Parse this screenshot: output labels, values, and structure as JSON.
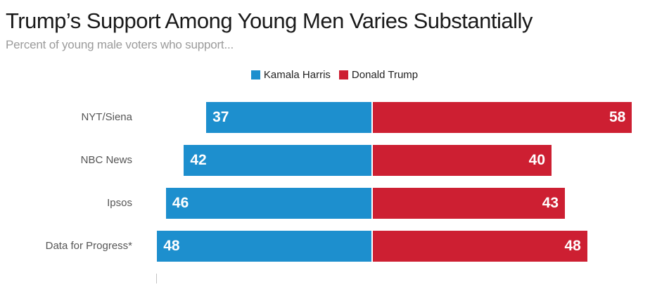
{
  "title": "Trump’s Support Among Young Men Varies Substantially",
  "subtitle": "Percent of young male voters who support...",
  "legend": {
    "items": [
      {
        "label": "Kamala Harris"
      },
      {
        "label": "Donald Trump"
      }
    ]
  },
  "chart_data": {
    "type": "bar",
    "variant": "diverging-horizontal",
    "title": "Trump’s Support Among Young Men Varies Substantially",
    "subtitle": "Percent of young male voters who support...",
    "categories": [
      "NYT/Siena",
      "NBC News",
      "Ipsos",
      "Data for Progress*"
    ],
    "series": [
      {
        "name": "Kamala Harris",
        "color": "#1d8fce",
        "values": [
          37,
          42,
          46,
          48
        ]
      },
      {
        "name": "Donald Trump",
        "color": "#cd1f32",
        "values": [
          58,
          40,
          43,
          48
        ]
      }
    ],
    "value_labels": "inside-bar-ends",
    "axes": "hidden",
    "legend_position": "top-center"
  }
}
